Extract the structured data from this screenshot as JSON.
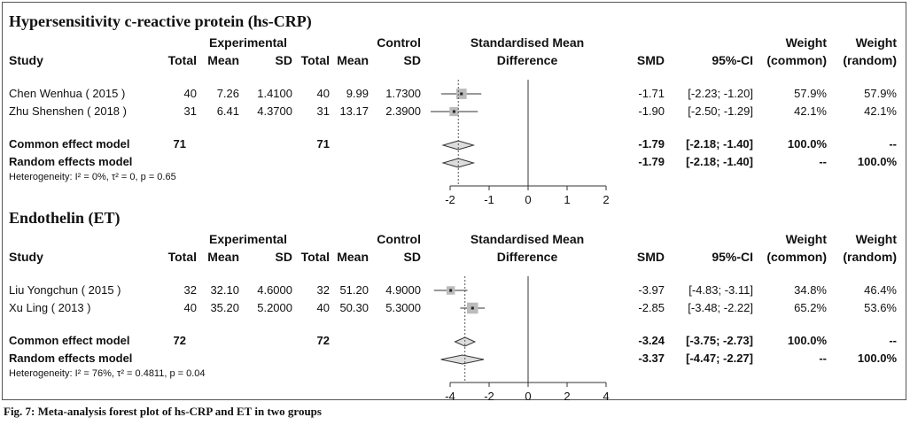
{
  "caption": "Fig. 7: Meta-analysis forest plot of hs-CRP and ET in two groups",
  "headers": {
    "experimental": "Experimental",
    "control": "Control",
    "smd_title_line1": "Standardised Mean",
    "smd_title_line2": "Difference",
    "study": "Study",
    "total": "Total",
    "mean": "Mean",
    "sd": "SD",
    "smd": "SMD",
    "ci": "95%-CI",
    "weight": "Weight",
    "weight_common": "(common)",
    "weight_random": "(random)"
  },
  "chart_data": [
    {
      "type": "forest",
      "title": "Hypersensitivity c-reactive protein (hs-CRP)",
      "xlim": [
        -2,
        2
      ],
      "ticks": [
        "-2",
        "-1",
        "0",
        "1",
        "2"
      ],
      "tick_values": [
        -2,
        -1,
        0,
        1,
        2
      ],
      "studies": [
        {
          "study": "Chen Wenhua ( 2015 )",
          "e_total": "40",
          "e_mean": "7.26",
          "e_sd": "1.4100",
          "c_total": "40",
          "c_mean": "9.99",
          "c_sd": "1.7300",
          "smd_text": "-1.71",
          "ci_text": "[-2.23; -1.20]",
          "w_common": "57.9%",
          "w_random": "57.9%",
          "smd": -1.71,
          "lo": -2.23,
          "hi": -1.2,
          "w": 57.9
        },
        {
          "study": "Zhu Shenshen ( 2018 )",
          "e_total": "31",
          "e_mean": "6.41",
          "e_sd": "4.3700",
          "c_total": "31",
          "c_mean": "13.17",
          "c_sd": "2.3900",
          "smd_text": "-1.90",
          "ci_text": "[-2.50; -1.29]",
          "w_common": "42.1%",
          "w_random": "42.1%",
          "smd": -1.9,
          "lo": -2.5,
          "hi": -1.29,
          "w": 42.1
        }
      ],
      "common": {
        "label": "Common effect model",
        "e_total": "71",
        "c_total": "71",
        "smd_text": "-1.79",
        "ci_text": "[-2.18; -1.40]",
        "w_common": "100.0%",
        "w_random": "--",
        "smd": -1.79,
        "lo": -2.18,
        "hi": -1.4
      },
      "random": {
        "label": "Random effects model",
        "smd_text": "-1.79",
        "ci_text": "[-2.18; -1.40]",
        "w_common": "--",
        "w_random": "100.0%",
        "smd": -1.79,
        "lo": -2.18,
        "hi": -1.4
      },
      "heterogeneity": "Heterogeneity: I² = 0%, τ² = 0, p = 0.65"
    },
    {
      "type": "forest",
      "title": "Endothelin (ET)",
      "xlim": [
        -4,
        4
      ],
      "ticks": [
        "-4",
        "-2",
        "0",
        "2",
        "4"
      ],
      "tick_values": [
        -4,
        -2,
        0,
        2,
        4
      ],
      "studies": [
        {
          "study": "Liu Yongchun ( 2015 )",
          "e_total": "32",
          "e_mean": "32.10",
          "e_sd": "4.6000",
          "c_total": "32",
          "c_mean": "51.20",
          "c_sd": "4.9000",
          "smd_text": "-3.97",
          "ci_text": "[-4.83; -3.11]",
          "w_common": "34.8%",
          "w_random": "46.4%",
          "smd": -3.97,
          "lo": -4.83,
          "hi": -3.11,
          "w": 34.8
        },
        {
          "study": "Xu Ling ( 2013 )",
          "e_total": "40",
          "e_mean": "35.20",
          "e_sd": "5.2000",
          "c_total": "40",
          "c_mean": "50.30",
          "c_sd": "5.3000",
          "smd_text": "-2.85",
          "ci_text": "[-3.48; -2.22]",
          "w_common": "65.2%",
          "w_random": "53.6%",
          "smd": -2.85,
          "lo": -3.48,
          "hi": -2.22,
          "w": 65.2
        }
      ],
      "common": {
        "label": "Common effect model",
        "e_total": "72",
        "c_total": "72",
        "smd_text": "-3.24",
        "ci_text": "[-3.75; -2.73]",
        "w_common": "100.0%",
        "w_random": "--",
        "smd": -3.24,
        "lo": -3.75,
        "hi": -2.73
      },
      "random": {
        "label": "Random effects model",
        "smd_text": "-3.37",
        "ci_text": "[-4.47; -2.27]",
        "w_common": "--",
        "w_random": "100.0%",
        "smd": -3.37,
        "lo": -4.47,
        "hi": -2.27
      },
      "heterogeneity": "Heterogeneity: I² = 76%, τ² = 0.4811, p = 0.04"
    }
  ]
}
